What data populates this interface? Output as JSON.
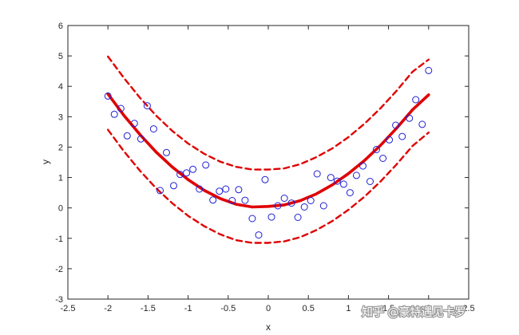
{
  "chart_data": {
    "type": "scatter",
    "title": "",
    "xlabel": "x",
    "ylabel": "y",
    "xlim": [
      -2.5,
      2.5
    ],
    "ylim": [
      -3,
      6
    ],
    "xticks": [
      -2.5,
      -2,
      -1.5,
      -1,
      -0.5,
      0,
      0.5,
      1,
      1.5,
      2,
      2.5
    ],
    "yticks": [
      -3,
      -2,
      -1,
      0,
      1,
      2,
      3,
      4,
      5,
      6
    ],
    "xtick_labels": [
      "-2.5",
      "-2",
      "-1.5",
      "-1",
      "-0.5",
      "0",
      "0.5",
      "1",
      "1.5",
      "2",
      "2.5"
    ],
    "ytick_labels": [
      "-3",
      "-2",
      "-1",
      "0",
      "1",
      "2",
      "3",
      "4",
      "5",
      "6"
    ],
    "grid": false,
    "colors": {
      "points": "#1f1fd6",
      "fit": "#e00000",
      "bounds": "#e00000"
    },
    "series": [
      {
        "kind": "scatter",
        "marker": "circle-open",
        "x": [
          -2.0,
          -1.92,
          -1.84,
          -1.76,
          -1.67,
          -1.59,
          -1.51,
          -1.43,
          -1.35,
          -1.27,
          -1.18,
          -1.1,
          -1.02,
          -0.94,
          -0.86,
          -0.78,
          -0.69,
          -0.61,
          -0.53,
          -0.45,
          -0.37,
          -0.29,
          -0.2,
          -0.12,
          -0.04,
          0.04,
          0.12,
          0.2,
          0.29,
          0.37,
          0.45,
          0.53,
          0.61,
          0.69,
          0.78,
          0.86,
          0.94,
          1.02,
          1.1,
          1.18,
          1.27,
          1.35,
          1.43,
          1.51,
          1.59,
          1.67,
          1.76,
          1.84,
          1.92,
          2.0
        ],
        "y": [
          3.68,
          3.08,
          3.27,
          2.37,
          2.78,
          2.27,
          3.36,
          2.6,
          0.57,
          1.82,
          0.73,
          1.1,
          1.15,
          1.27,
          0.62,
          1.41,
          0.26,
          0.55,
          0.62,
          0.24,
          0.6,
          0.25,
          -0.35,
          -0.89,
          0.93,
          -0.3,
          0.07,
          0.32,
          0.16,
          -0.31,
          0.03,
          0.24,
          1.12,
          0.07,
          1.0,
          0.88,
          0.78,
          0.5,
          1.07,
          1.38,
          0.87,
          1.92,
          1.63,
          2.24,
          2.72,
          2.35,
          2.95,
          3.56,
          2.75,
          4.52
        ]
      },
      {
        "kind": "line",
        "style": "solid",
        "x": [
          -2.0,
          -1.8,
          -1.6,
          -1.4,
          -1.2,
          -1.0,
          -0.8,
          -0.6,
          -0.4,
          -0.2,
          0.0,
          0.2,
          0.4,
          0.6,
          0.8,
          1.0,
          1.2,
          1.4,
          1.6,
          1.8,
          2.0
        ],
        "y": [
          3.75,
          3.04,
          2.41,
          1.84,
          1.35,
          0.93,
          0.58,
          0.31,
          0.12,
          0.03,
          0.05,
          0.1,
          0.24,
          0.46,
          0.76,
          1.13,
          1.56,
          2.06,
          2.62,
          3.23,
          3.72
        ]
      },
      {
        "kind": "line",
        "style": "dashed",
        "x": [
          -2.0,
          -1.8,
          -1.6,
          -1.4,
          -1.2,
          -1.0,
          -0.8,
          -0.6,
          -0.4,
          -0.2,
          0.0,
          0.2,
          0.4,
          0.6,
          0.8,
          1.0,
          1.2,
          1.4,
          1.6,
          1.8,
          2.0
        ],
        "y": [
          4.98,
          4.27,
          3.62,
          3.04,
          2.54,
          2.12,
          1.78,
          1.52,
          1.35,
          1.26,
          1.26,
          1.3,
          1.44,
          1.67,
          1.96,
          2.33,
          2.77,
          3.28,
          3.85,
          4.48,
          4.88
        ]
      },
      {
        "kind": "line",
        "style": "dashed",
        "x": [
          -2.0,
          -1.8,
          -1.6,
          -1.4,
          -1.2,
          -1.0,
          -0.8,
          -0.6,
          -0.4,
          -0.2,
          0.0,
          0.2,
          0.4,
          0.6,
          0.8,
          1.0,
          1.2,
          1.4,
          1.6,
          1.8,
          2.0
        ],
        "y": [
          2.57,
          1.86,
          1.22,
          0.65,
          0.16,
          -0.26,
          -0.6,
          -0.87,
          -1.06,
          -1.15,
          -1.15,
          -1.1,
          -0.96,
          -0.73,
          -0.43,
          -0.06,
          0.37,
          0.87,
          1.43,
          2.04,
          2.48
        ]
      }
    ]
  },
  "watermark": {
    "text": "知乎 @豪特遇见卡罗"
  }
}
